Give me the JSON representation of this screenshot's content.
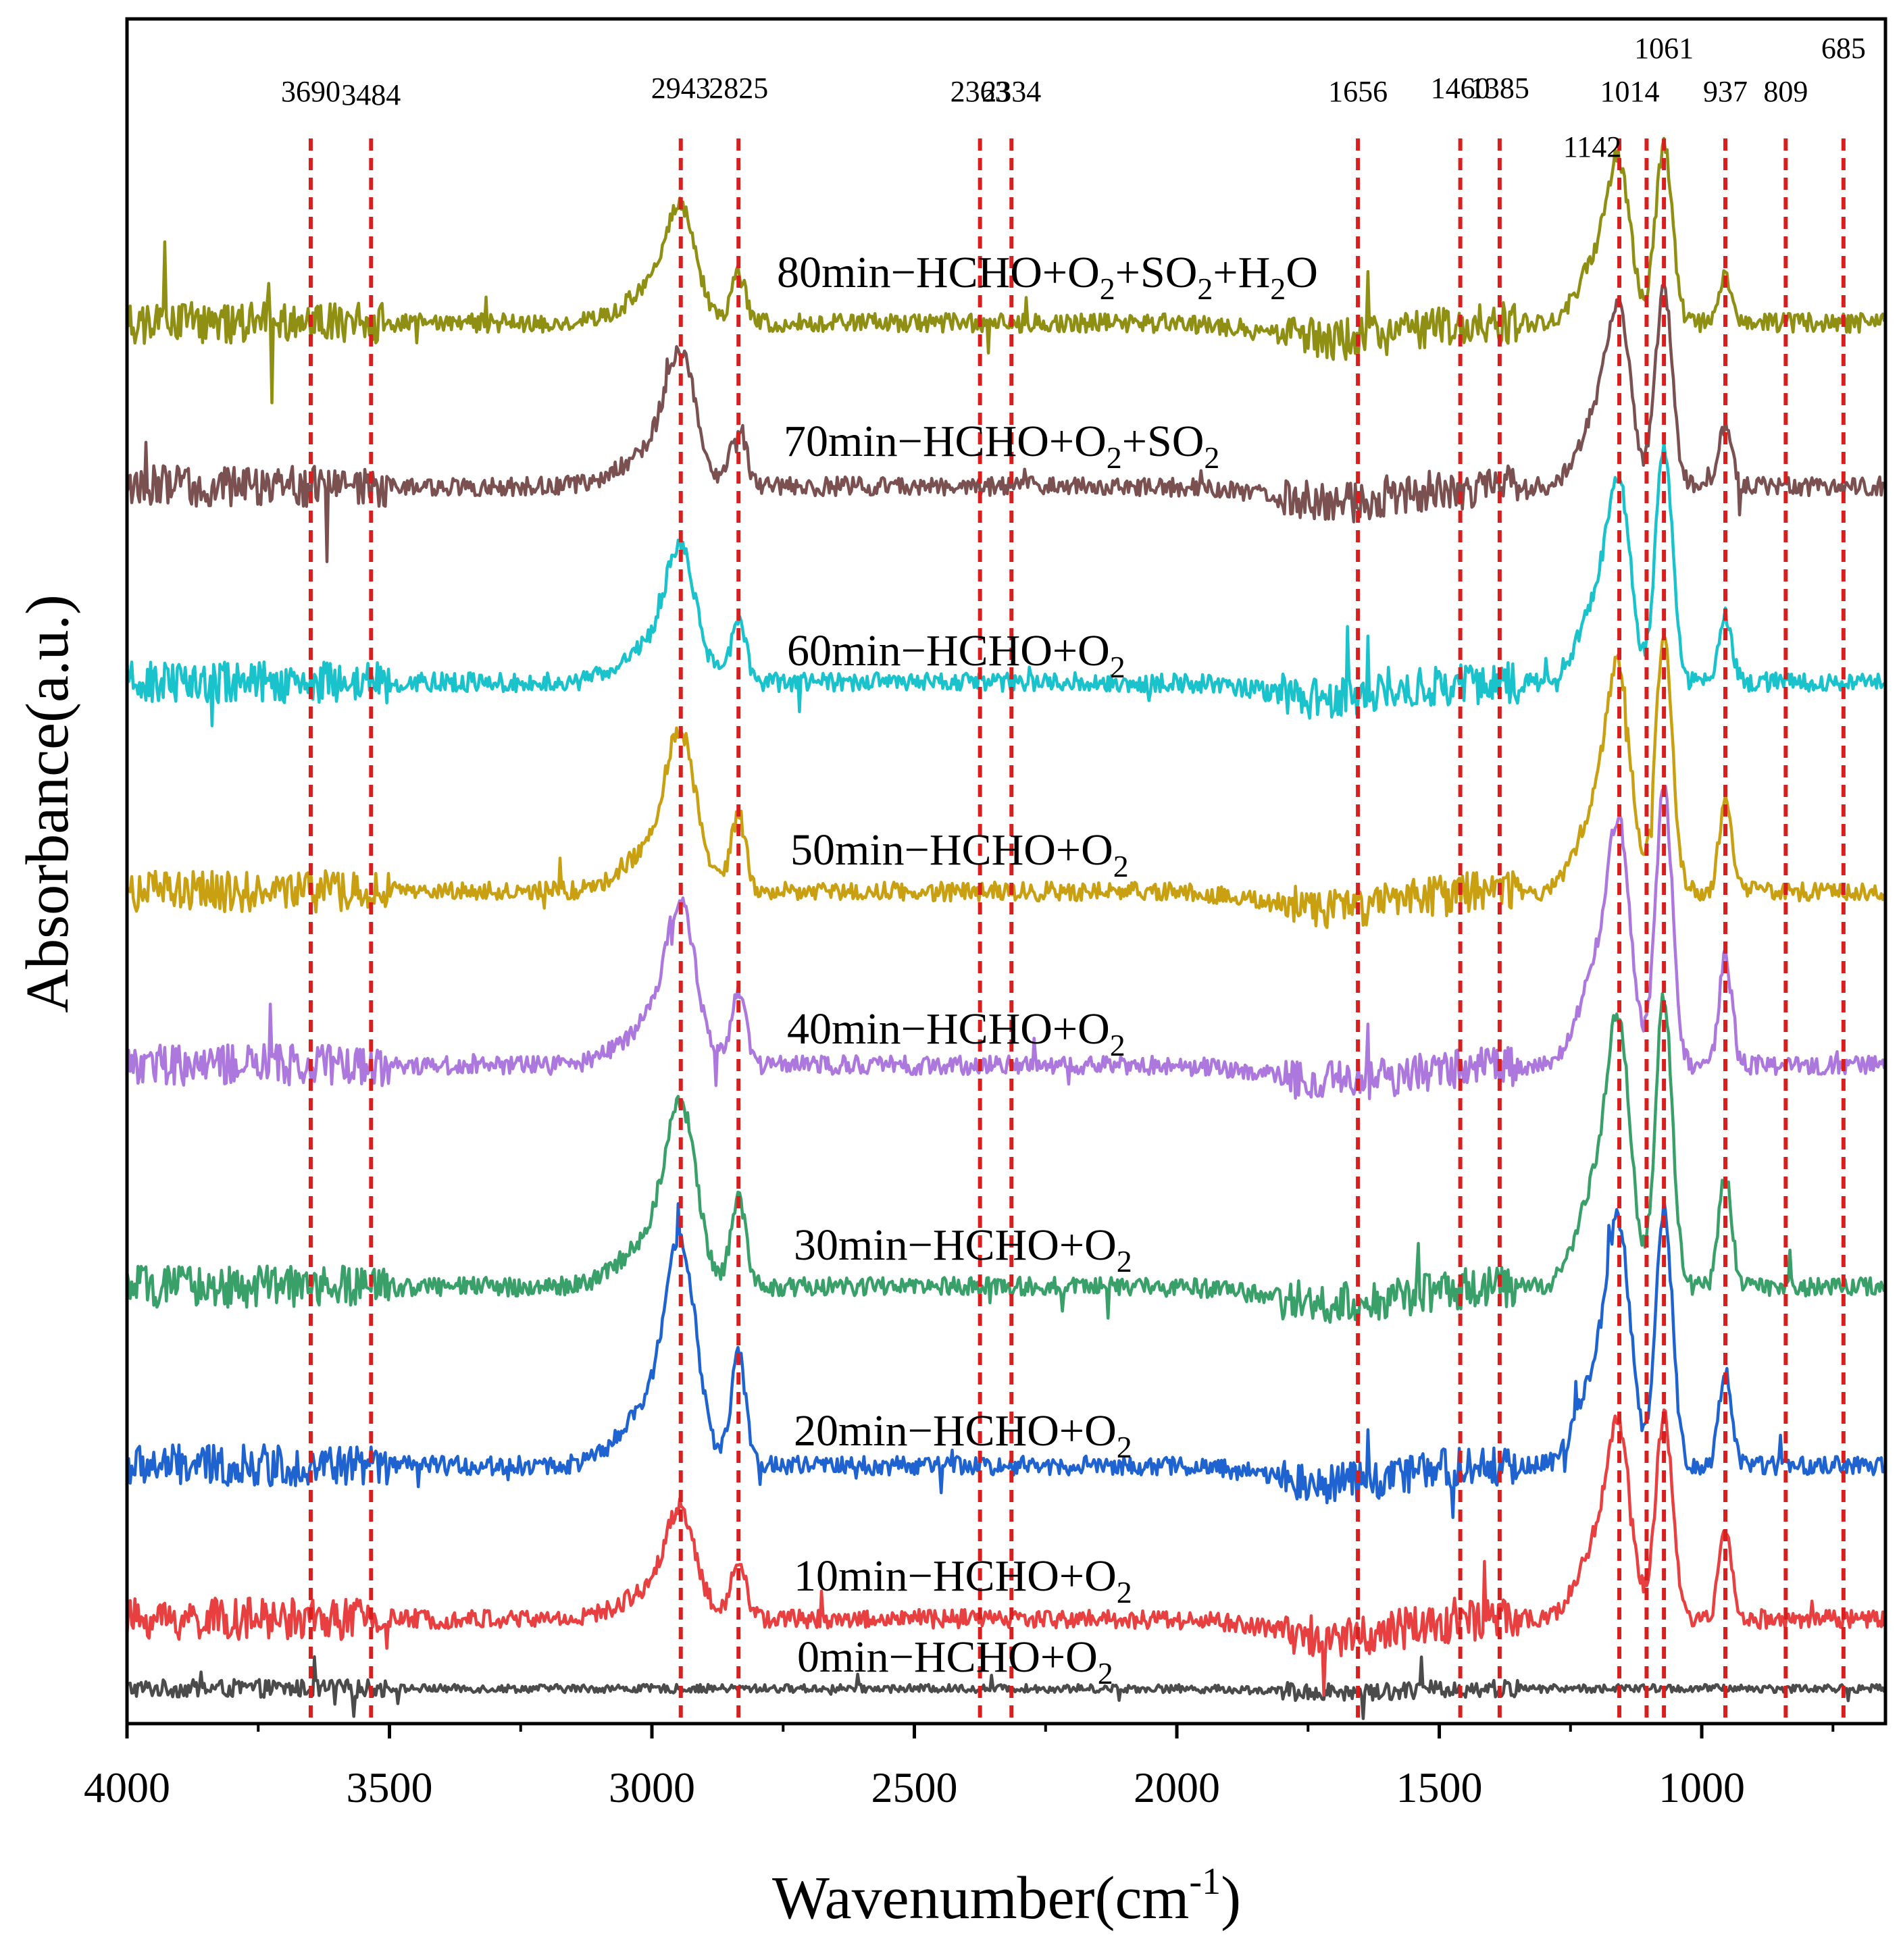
{
  "chart_data": {
    "type": "line",
    "title": "",
    "xlabel": "Wavenumber(cm",
    "xlabel_sup": "-1",
    "xlabel_close": ")",
    "ylabel": "Absorbance(a.u.)",
    "xlim": [
      4000,
      650
    ],
    "x_reversed": true,
    "grid": false,
    "x_ticks": [
      4000,
      3500,
      3000,
      2500,
      2000,
      1500,
      1000
    ],
    "reference_lines": [
      {
        "x": 3650,
        "label": "3690"
      },
      {
        "x": 3535,
        "label": "3484"
      },
      {
        "x": 2945,
        "label": "2943"
      },
      {
        "x": 2835,
        "label": "2825"
      },
      {
        "x": 2375,
        "label": "2363"
      },
      {
        "x": 2315,
        "label": "2334"
      },
      {
        "x": 1655,
        "label": "1656"
      },
      {
        "x": 1460,
        "label": "1460"
      },
      {
        "x": 1385,
        "label": "1385"
      },
      {
        "x": 1157,
        "label": "1142"
      },
      {
        "x": 1105,
        "label": "1014"
      },
      {
        "x": 1072,
        "label": "1061"
      },
      {
        "x": 955,
        "label": "937"
      },
      {
        "x": 840,
        "label": "809"
      },
      {
        "x": 730,
        "label": "685"
      }
    ],
    "series": [
      {
        "name": "0min",
        "label_main": "0min−HCHO+O",
        "label_sub": "2",
        "label_rest": "",
        "color": "#4b4b4b",
        "baseline": 0.0,
        "peaks": {
          "p2943": 0.0,
          "p2825": 0.0,
          "p1142": 0.0,
          "p1061": 0.0,
          "p937": 0.0
        }
      },
      {
        "name": "10min",
        "label_main": "10min−HCHO+O",
        "label_sub": "2",
        "label_rest": "",
        "color": "#e84040",
        "baseline": 1.0,
        "peaks": {
          "p2943": 1.3,
          "p2825": 0.9,
          "p1142": 2.4,
          "p1061": 3.0,
          "p937": 1.3
        }
      },
      {
        "name": "20min",
        "label_main": "20min−HCHO+O",
        "label_sub": "2",
        "label_rest": "",
        "color": "#1f63d1",
        "baseline": 2.2,
        "peaks": {
          "p2943": 2.7,
          "p2825": 1.6,
          "p1142": 3.0,
          "p1061": 3.8,
          "p937": 1.4
        }
      },
      {
        "name": "30min",
        "label_main": "30min−HCHO+O",
        "label_sub": "2",
        "label_rest": "",
        "color": "#3aa06a",
        "baseline": 3.4,
        "peaks": {
          "p2943": 2.2,
          "p2825": 1.3,
          "p1142": 3.3,
          "p1061": 4.3,
          "p937": 1.7
        }
      },
      {
        "name": "40min",
        "label_main": "40min−HCHO+O",
        "label_sub": "2",
        "label_rest": "",
        "color": "#ad78de",
        "baseline": 4.6,
        "peaks": {
          "p2943": 1.9,
          "p2825": 1.1,
          "p1142": 3.0,
          "p1061": 4.1,
          "p937": 1.6
        }
      },
      {
        "name": "50min",
        "label_main": "50min−HCHO+O",
        "label_sub": "2",
        "label_rest": "",
        "color": "#c9a011",
        "baseline": 5.8,
        "peaks": {
          "p2943": 1.9,
          "p2825": 1.1,
          "p1142": 2.8,
          "p1061": 3.8,
          "p937": 1.3
        }
      },
      {
        "name": "60min",
        "label_main": "60min−HCHO+O",
        "label_sub": "2",
        "label_rest": "",
        "color": "#1ac3cc",
        "baseline": 7.0,
        "peaks": {
          "p2943": 1.6,
          "p2825": 0.9,
          "p1142": 2.5,
          "p1061": 3.5,
          "p937": 1.0
        }
      },
      {
        "name": "70min",
        "label_main": "70min−HCHO+O",
        "label_sub": "2",
        "label_rest": "+SO",
        "label_sub2": "2",
        "label_tail": "",
        "color": "#7a5050",
        "baseline": 8.2,
        "peaks": {
          "p2943": 1.6,
          "p2825": 0.9,
          "p1142": 2.2,
          "p1061": 2.9,
          "p937": 0.9
        }
      },
      {
        "name": "80min",
        "label_main": "80min−HCHO+O",
        "label_sub": "2",
        "label_rest": "+SO",
        "label_sub2": "2",
        "label_tail": "+H",
        "label_sub3": "2",
        "label_end": "O",
        "color": "#8f8f14",
        "baseline": 9.4,
        "peaks": {
          "p2943": 1.4,
          "p2825": 0.7,
          "p1142": 2.0,
          "p1061": 2.6,
          "p937": 0.7
        }
      }
    ]
  },
  "colors": {
    "reference_line": "#d91e1e",
    "axis": "#000000",
    "background": "#ffffff"
  }
}
